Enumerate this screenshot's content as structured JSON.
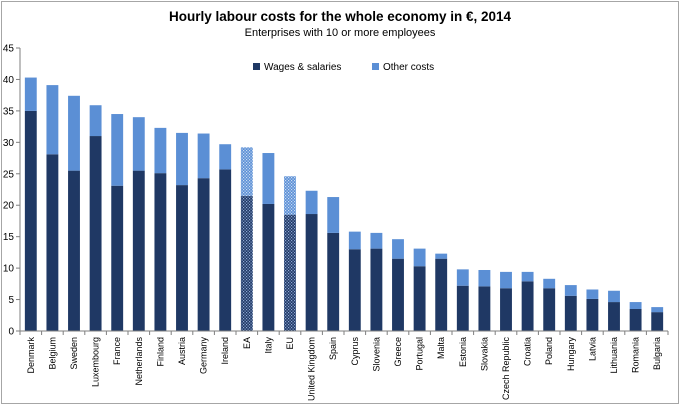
{
  "chart_data": {
    "type": "bar",
    "stacked": true,
    "title": "Hourly labour costs for the whole economy in €, 2014",
    "subtitle": "Enterprises with 10 or more employees",
    "xlabel": "",
    "ylabel": "",
    "ylim": [
      0,
      45
    ],
    "yticks": [
      0,
      5,
      10,
      15,
      20,
      25,
      30,
      35,
      40,
      45
    ],
    "grid": false,
    "legend_position": "top-center",
    "categories": [
      "Denmark",
      "Belgium",
      "Sweden",
      "Luxembourg",
      "France",
      "Netherlands",
      "Finland",
      "Austria",
      "Germany",
      "Ireland",
      "EA",
      "Italy",
      "EU",
      "United Kingdom",
      "Spain",
      "Cyprus",
      "Slovenia",
      "Greece",
      "Portugal",
      "Malta",
      "Estonia",
      "Slovakia",
      "Czech Republic",
      "Croatia",
      "Poland",
      "Hungary",
      "Latvia",
      "Lithuania",
      "Romania",
      "Bulgaria"
    ],
    "hatched_categories": [
      "EA",
      "EU"
    ],
    "series": [
      {
        "name": "Wages & salaries",
        "color": "#1f3864",
        "values": [
          35.0,
          28.1,
          25.5,
          31.0,
          23.1,
          25.5,
          25.1,
          23.2,
          24.3,
          25.7,
          21.5,
          20.2,
          18.5,
          18.6,
          15.6,
          13.0,
          13.1,
          11.5,
          10.3,
          11.5,
          7.2,
          7.1,
          6.8,
          7.9,
          6.8,
          5.6,
          5.1,
          4.6,
          3.5,
          3.0
        ]
      },
      {
        "name": "Other costs",
        "color": "#5b8fd5",
        "values": [
          5.3,
          11.0,
          11.9,
          4.9,
          11.4,
          8.5,
          7.2,
          8.3,
          7.1,
          4.0,
          7.7,
          8.1,
          6.1,
          3.7,
          5.7,
          2.8,
          2.5,
          3.1,
          2.8,
          0.8,
          2.6,
          2.6,
          2.6,
          1.5,
          1.5,
          1.7,
          1.5,
          1.8,
          1.1,
          0.8
        ]
      }
    ]
  }
}
